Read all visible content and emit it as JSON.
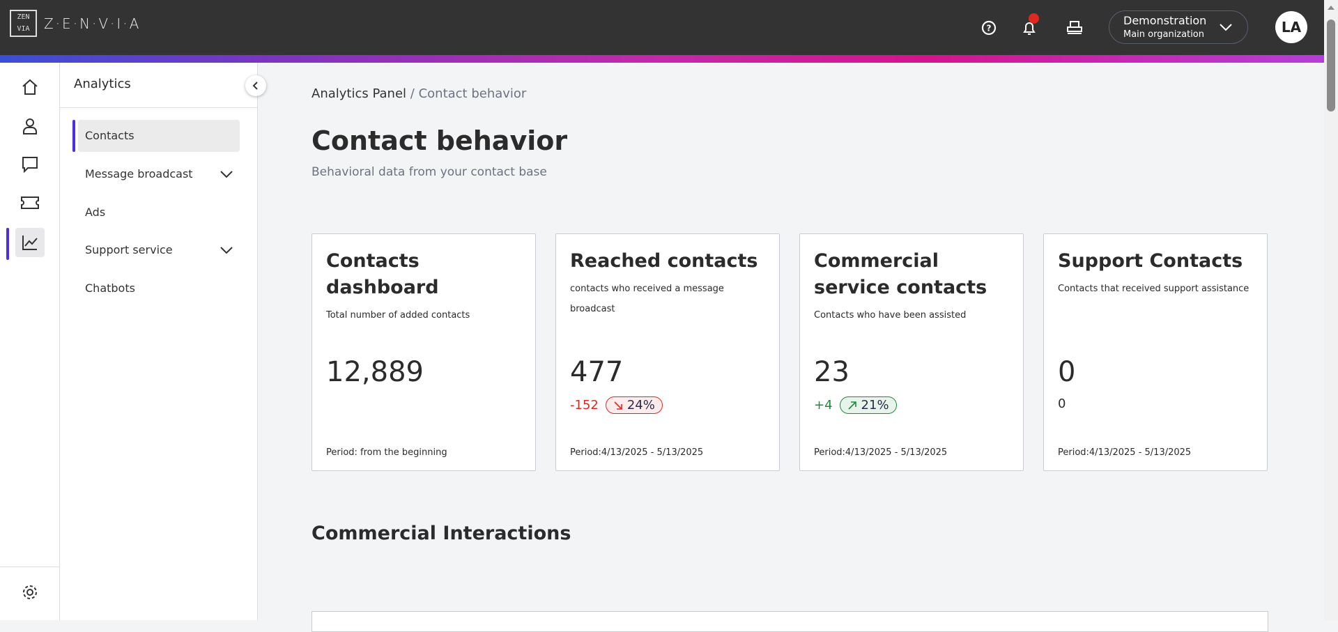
{
  "header": {
    "logo_text": "Z·E·N·V·I·A",
    "logo_mark": "ZEN VIA",
    "org_name": "Demonstration",
    "org_sub": "Main organization",
    "avatar_initials": "LA",
    "notification_color": "#e0281e"
  },
  "sidebar": {
    "title": "Analytics",
    "items": [
      {
        "label": "Contacts",
        "active": true
      },
      {
        "label": "Message broadcast",
        "expandable": true
      },
      {
        "label": "Ads"
      },
      {
        "label": "Support service",
        "expandable": true
      },
      {
        "label": "Chatbots"
      }
    ]
  },
  "rail": {
    "icons": [
      "home-icon",
      "user-icon",
      "chat-icon",
      "ticket-icon",
      "analytics-icon",
      "settings-icon"
    ],
    "active": "analytics-icon"
  },
  "breadcrumb": {
    "parent": "Analytics Panel",
    "separator": "/",
    "current": "Contact behavior"
  },
  "page": {
    "title": "Contact behavior",
    "subtitle": "Behavioral data from your contact base",
    "section_title": "Commercial Interactions"
  },
  "cards": [
    {
      "title": "Contacts dashboard",
      "desc": "Total number of added contacts",
      "value": "12,889",
      "period": "Period: from the beginning"
    },
    {
      "title": "Reached contacts",
      "desc": "contacts who received a message broadcast",
      "value": "477",
      "delta": "-152",
      "pct": "24%",
      "trend": "down",
      "period": "Period:4/13/2025 - 5/13/2025"
    },
    {
      "title": "Commercial service contacts",
      "desc": "Contacts who have been assisted",
      "value": "23",
      "delta": "+4",
      "pct": "21%",
      "trend": "up",
      "period": "Period:4/13/2025 - 5/13/2025"
    },
    {
      "title": "Support Contacts",
      "desc": "Contacts that received support assistance",
      "value": "0",
      "delta": "0",
      "period": "Period:4/13/2025 - 5/13/2025"
    }
  ],
  "colors": {
    "accent": "#4a30e0",
    "negative": "#e0281e",
    "positive": "#1f8a3a"
  }
}
